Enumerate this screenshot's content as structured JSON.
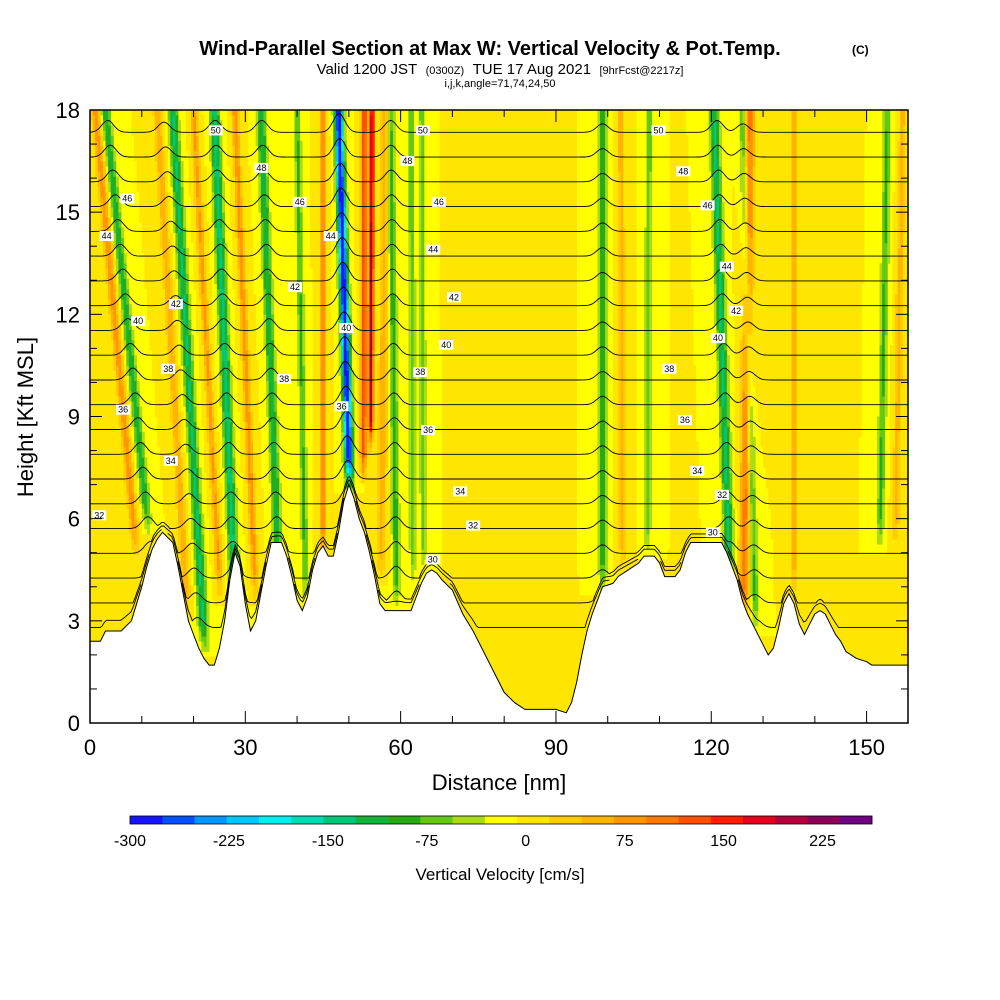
{
  "header": {
    "title": "Wind-Parallel Section at Max W: Vertical Velocity & Pot.Temp.",
    "title_suffix": "(C)",
    "valid_prefix": "Valid 1200 JST",
    "valid_utc": "(0300Z)",
    "valid_date": "TUE 17 Aug 2021",
    "forecast": "[9hrFcst@2217z]",
    "section_info": "i,j,k,angle=71,74,24,50"
  },
  "chart_data": {
    "type": "heatmap",
    "title": "Wind-Parallel Section at Max W: Vertical Velocity & Pot.Temp.",
    "xlabel": "Distance [nm]",
    "ylabel": "Height [Kft MSL]",
    "xlim": [
      0,
      158
    ],
    "ylim": [
      0,
      18
    ],
    "x_ticks": [
      "0",
      "30",
      "60",
      "90",
      "120",
      "150"
    ],
    "y_ticks": [
      "0",
      "3",
      "6",
      "9",
      "12",
      "15",
      "18"
    ],
    "grid": false,
    "colorbar": {
      "title": "Vertical Velocity [cm/s]",
      "min": -300,
      "max": 262.5,
      "step": 25,
      "labels": [
        "-300",
        "-225",
        "-150",
        "-75",
        "0",
        "75",
        "150",
        "225"
      ],
      "colors": [
        "#1414ff",
        "#0050ff",
        "#0096ff",
        "#00c8ff",
        "#00f0f0",
        "#00dcb4",
        "#00c878",
        "#14b43c",
        "#28aa14",
        "#64c814",
        "#aadc14",
        "#ffff00",
        "#ffe600",
        "#ffcc00",
        "#ffb400",
        "#ff9600",
        "#ff7800",
        "#ff5000",
        "#ff1e00",
        "#e6001e",
        "#b4003c",
        "#8c005a",
        "#6e0082"
      ]
    },
    "terrain": [
      [
        0,
        2.4
      ],
      [
        2,
        2.4
      ],
      [
        3,
        2.7
      ],
      [
        6,
        2.7
      ],
      [
        8,
        3.0
      ],
      [
        9,
        3.5
      ],
      [
        10,
        4.0
      ],
      [
        11,
        4.6
      ],
      [
        12,
        5.1
      ],
      [
        13,
        5.4
      ],
      [
        14,
        5.6
      ],
      [
        16,
        5.3
      ],
      [
        17,
        4.6
      ],
      [
        18,
        3.8
      ],
      [
        19,
        3.0
      ],
      [
        20,
        2.6
      ],
      [
        21,
        2.2
      ],
      [
        22,
        1.9
      ],
      [
        23,
        1.7
      ],
      [
        24,
        1.7
      ],
      [
        25,
        2.2
      ],
      [
        26,
        3.0
      ],
      [
        27,
        4.2
      ],
      [
        28,
        5.0
      ],
      [
        29,
        4.6
      ],
      [
        30,
        3.5
      ],
      [
        31,
        2.7
      ],
      [
        32,
        3.0
      ],
      [
        33,
        3.8
      ],
      [
        34,
        4.6
      ],
      [
        35,
        5.3
      ],
      [
        37,
        5.3
      ],
      [
        38,
        4.9
      ],
      [
        39,
        4.3
      ],
      [
        40,
        3.6
      ],
      [
        41,
        3.3
      ],
      [
        42,
        3.7
      ],
      [
        43,
        4.5
      ],
      [
        44,
        5.0
      ],
      [
        45,
        5.2
      ],
      [
        46,
        4.9
      ],
      [
        47,
        4.9
      ],
      [
        48,
        5.6
      ],
      [
        49,
        6.5
      ],
      [
        50,
        7.0
      ],
      [
        51,
        6.6
      ],
      [
        52,
        6.0
      ],
      [
        53,
        5.6
      ],
      [
        54,
        5.0
      ],
      [
        55,
        4.3
      ],
      [
        56,
        3.5
      ],
      [
        57,
        3.3
      ],
      [
        62,
        3.3
      ],
      [
        63,
        3.7
      ],
      [
        64,
        4.1
      ],
      [
        65,
        4.4
      ],
      [
        66,
        4.5
      ],
      [
        67,
        4.4
      ],
      [
        68,
        4.2
      ],
      [
        70,
        3.9
      ],
      [
        72,
        3.2
      ],
      [
        74,
        2.7
      ],
      [
        76,
        2.1
      ],
      [
        78,
        1.5
      ],
      [
        80,
        0.9
      ],
      [
        82,
        0.6
      ],
      [
        84,
        0.4
      ],
      [
        90,
        0.4
      ],
      [
        92,
        0.3
      ],
      [
        93,
        0.6
      ],
      [
        94,
        1.2
      ],
      [
        95,
        2.0
      ],
      [
        96,
        2.7
      ],
      [
        97,
        3.2
      ],
      [
        98,
        3.6
      ],
      [
        99,
        4.0
      ],
      [
        101,
        4.1
      ],
      [
        102,
        4.3
      ],
      [
        104,
        4.5
      ],
      [
        106,
        4.7
      ],
      [
        107,
        4.9
      ],
      [
        109,
        4.9
      ],
      [
        110,
        4.7
      ],
      [
        111,
        4.3
      ],
      [
        113,
        4.3
      ],
      [
        114,
        4.5
      ],
      [
        115,
        5.0
      ],
      [
        116,
        5.3
      ],
      [
        122,
        5.3
      ],
      [
        123,
        5.0
      ],
      [
        124,
        4.6
      ],
      [
        125,
        4.2
      ],
      [
        126,
        3.6
      ],
      [
        127,
        3.2
      ],
      [
        128,
        2.9
      ],
      [
        129,
        2.6
      ],
      [
        130,
        2.3
      ],
      [
        131,
        2.0
      ],
      [
        132,
        2.2
      ],
      [
        133,
        2.8
      ],
      [
        134,
        3.5
      ],
      [
        135,
        3.8
      ],
      [
        136,
        3.5
      ],
      [
        137,
        2.9
      ],
      [
        138,
        2.6
      ],
      [
        139,
        2.9
      ],
      [
        140,
        3.2
      ],
      [
        141,
        3.3
      ],
      [
        142,
        3.2
      ],
      [
        143,
        2.9
      ],
      [
        144,
        2.6
      ],
      [
        145,
        2.4
      ],
      [
        146,
        2.1
      ],
      [
        147,
        2.0
      ],
      [
        148,
        1.9
      ],
      [
        150,
        1.8
      ],
      [
        151,
        1.7
      ],
      [
        155,
        1.7
      ],
      [
        158,
        1.7
      ]
    ],
    "vertical_velocity_bands": [
      {
        "x_base": 12.0,
        "x_top": 1.0,
        "sigma": 0.8,
        "w": 90,
        "y_min": 4.8
      },
      {
        "x_base": 15.0,
        "x_top": 3.0,
        "sigma": 0.8,
        "w": -110,
        "y_min": 5.5
      },
      {
        "x_base": 20.0,
        "x_top": 13.0,
        "sigma": 0.8,
        "w": 70,
        "y_min": 3.0
      },
      {
        "x_base": 23.0,
        "x_top": 16.0,
        "sigma": 0.9,
        "w": -130,
        "y_min": 2.0
      },
      {
        "x_base": 26.5,
        "x_top": 20.0,
        "sigma": 0.7,
        "w": 80,
        "y_min": 3.5
      },
      {
        "x_base": 29.0,
        "x_top": 24.0,
        "sigma": 0.9,
        "w": -140,
        "y_min": 2.8
      },
      {
        "x_base": 33.0,
        "x_top": 28.0,
        "sigma": 0.7,
        "w": 90,
        "y_min": 3.5
      },
      {
        "x_base": 37.5,
        "x_top": 33.0,
        "sigma": 0.8,
        "w": -120,
        "y_min": 4.0
      },
      {
        "x_base": 42.0,
        "x_top": 40.0,
        "sigma": 0.6,
        "w": -80,
        "y_min": 3.5
      },
      {
        "x_base": 45.0,
        "x_top": 45.0,
        "sigma": 0.6,
        "w": 90,
        "y_min": 4.5
      },
      {
        "x_base": 51.5,
        "x_top": 48.0,
        "sigma": 0.8,
        "w": -310,
        "y_min": 6.8
      },
      {
        "x_base": 52.7,
        "x_top": 53.0,
        "sigma": 0.6,
        "w": 150,
        "y_min": 7.0
      },
      {
        "x_base": 54.0,
        "x_top": 54.5,
        "sigma": 0.5,
        "w": 220,
        "y_min": 8.0
      },
      {
        "x_base": 56.0,
        "x_top": 57.0,
        "sigma": 0.9,
        "w": 60,
        "y_min": 4.0
      },
      {
        "x_base": 59.5,
        "x_top": 58.0,
        "sigma": 0.7,
        "w": -90,
        "y_min": 3.3
      },
      {
        "x_base": 62.5,
        "x_top": 62.0,
        "sigma": 0.6,
        "w": -70,
        "y_min": 4.0
      },
      {
        "x_base": 64.5,
        "x_top": 64.0,
        "sigma": 0.6,
        "w": -60,
        "y_min": 4.3
      },
      {
        "x_base": 99.0,
        "x_top": 99.0,
        "sigma": 0.8,
        "w": -100,
        "y_min": 3.8
      },
      {
        "x_base": 103.0,
        "x_top": 102.5,
        "sigma": 0.7,
        "w": 60,
        "y_min": 4.3
      },
      {
        "x_base": 107.5,
        "x_top": 108.0,
        "sigma": 0.7,
        "w": -60,
        "y_min": 4.8
      },
      {
        "x_base": 126.0,
        "x_top": 127.5,
        "sigma": 1.0,
        "w": 110,
        "y_min": 3.0
      },
      {
        "x_base": 124.5,
        "x_top": 120.5,
        "sigma": 0.9,
        "w": -130,
        "y_min": 4.2
      },
      {
        "x_base": 129.0,
        "x_top": 126.0,
        "sigma": 0.7,
        "w": -80,
        "y_min": 2.6
      },
      {
        "x_base": 136.0,
        "x_top": 136.0,
        "sigma": 0.8,
        "w": 60,
        "y_min": 3.6
      },
      {
        "x_base": 152.0,
        "x_top": 154.0,
        "sigma": 0.7,
        "w": -80,
        "y_min": 5.0
      },
      {
        "x_base": 155.0,
        "x_top": 157.0,
        "sigma": 0.7,
        "w": 60,
        "y_min": 5.0
      }
    ],
    "theta_contours": {
      "min": 29,
      "max": 51,
      "step": 1,
      "wave_ridges": [
        {
          "x_base": 15.0,
          "x_top": 3.0,
          "amp": 0.35
        },
        {
          "x_base": 22.0,
          "x_top": 14.0,
          "amp": 0.3
        },
        {
          "x_base": 29.0,
          "x_top": 24.0,
          "amp": 0.35
        },
        {
          "x_base": 37.5,
          "x_top": 33.0,
          "amp": 0.35
        },
        {
          "x_base": 51.0,
          "x_top": 48.0,
          "amp": 0.55
        },
        {
          "x_base": 59.5,
          "x_top": 58.0,
          "amp": 0.35
        },
        {
          "x_base": 99.0,
          "x_top": 99.0,
          "amp": 0.25
        },
        {
          "x_base": 124.5,
          "x_top": 121.0,
          "amp": 0.35
        },
        {
          "x_base": 129.0,
          "x_top": 126.0,
          "amp": 0.25
        }
      ]
    },
    "contour_labels": [
      {
        "text": "50",
        "x": 24.3,
        "y": 17.4
      },
      {
        "text": "50",
        "x": 64.3,
        "y": 17.4
      },
      {
        "text": "50",
        "x": 109.8,
        "y": 17.4
      },
      {
        "text": "48",
        "x": 33.1,
        "y": 16.3
      },
      {
        "text": "48",
        "x": 61.3,
        "y": 16.5
      },
      {
        "text": "48",
        "x": 114.6,
        "y": 16.2
      },
      {
        "text": "46",
        "x": 7.2,
        "y": 15.4
      },
      {
        "text": "46",
        "x": 40.5,
        "y": 15.3
      },
      {
        "text": "46",
        "x": 67.4,
        "y": 15.3
      },
      {
        "text": "46",
        "x": 119.3,
        "y": 15.2
      },
      {
        "text": "44",
        "x": 3.2,
        "y": 14.3
      },
      {
        "text": "44",
        "x": 46.5,
        "y": 14.3
      },
      {
        "text": "44",
        "x": 66.3,
        "y": 13.9
      },
      {
        "text": "44",
        "x": 123.0,
        "y": 13.4
      },
      {
        "text": "42",
        "x": 39.6,
        "y": 12.8
      },
      {
        "text": "42",
        "x": 16.6,
        "y": 12.3
      },
      {
        "text": "42",
        "x": 70.3,
        "y": 12.5
      },
      {
        "text": "42",
        "x": 124.8,
        "y": 12.1
      },
      {
        "text": "40",
        "x": 9.3,
        "y": 11.8
      },
      {
        "text": "40",
        "x": 49.5,
        "y": 11.6
      },
      {
        "text": "40",
        "x": 68.8,
        "y": 11.1
      },
      {
        "text": "40",
        "x": 121.3,
        "y": 11.3
      },
      {
        "text": "38",
        "x": 15.1,
        "y": 10.4
      },
      {
        "text": "38",
        "x": 63.8,
        "y": 10.3
      },
      {
        "text": "38",
        "x": 111.9,
        "y": 10.4
      },
      {
        "text": "38",
        "x": 37.5,
        "y": 10.1
      },
      {
        "text": "36",
        "x": 6.4,
        "y": 9.2
      },
      {
        "text": "36",
        "x": 48.6,
        "y": 9.3
      },
      {
        "text": "36",
        "x": 65.3,
        "y": 8.6
      },
      {
        "text": "36",
        "x": 114.9,
        "y": 8.9
      },
      {
        "text": "34",
        "x": 15.6,
        "y": 7.7
      },
      {
        "text": "34",
        "x": 71.5,
        "y": 6.8
      },
      {
        "text": "34",
        "x": 117.3,
        "y": 7.4
      },
      {
        "text": "32",
        "x": 1.8,
        "y": 6.1
      },
      {
        "text": "32",
        "x": 74.0,
        "y": 5.8
      },
      {
        "text": "32",
        "x": 122.1,
        "y": 6.7
      },
      {
        "text": "30",
        "x": 66.2,
        "y": 4.8
      },
      {
        "text": "30",
        "x": 120.3,
        "y": 5.6
      }
    ]
  }
}
